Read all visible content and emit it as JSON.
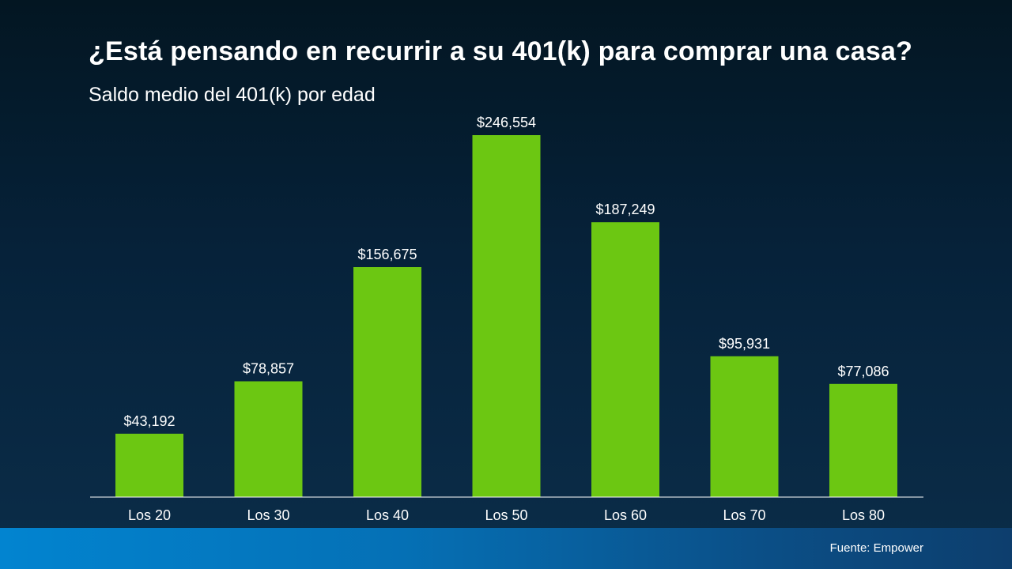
{
  "header": {
    "title": "¿Está pensando en recurrir a su 401(k) para comprar una casa?",
    "subtitle": "Saldo medio del 401(k) por edad"
  },
  "footer": {
    "source": "Fuente: Empower"
  },
  "colors": {
    "bar": "#6cc712",
    "baseline": "#ffffff",
    "text": "#ffffff"
  },
  "chart_data": {
    "type": "bar",
    "title": "¿Está pensando en recurrir a su 401(k) para comprar una casa?",
    "subtitle": "Saldo medio del 401(k) por edad",
    "xlabel": "",
    "ylabel": "",
    "categories": [
      "Los 20",
      "Los 30",
      "Los 40",
      "Los 50",
      "Los 60",
      "Los 70",
      "Los 80"
    ],
    "values": [
      43192,
      78857,
      156675,
      246554,
      187249,
      95931,
      77086
    ],
    "value_labels": [
      "$43,192",
      "$78,857",
      "$156,675",
      "$246,554",
      "$187,249",
      "$95,931",
      "$77,086"
    ],
    "ylim": [
      0,
      246554
    ],
    "grid": false,
    "legend": "none"
  }
}
